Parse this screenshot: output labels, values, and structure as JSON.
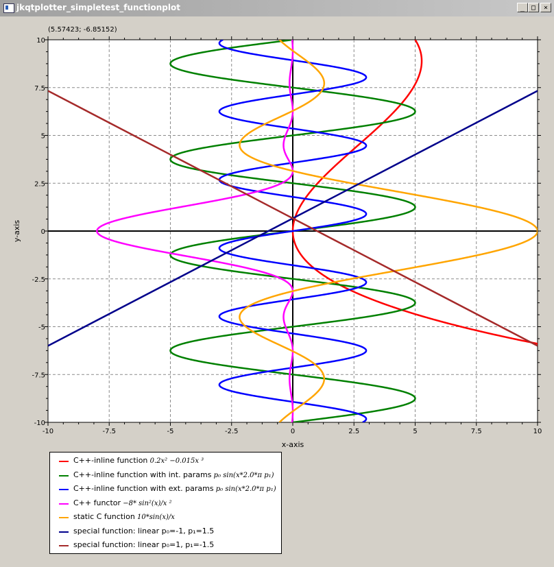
{
  "window": {
    "title": "jkqtplotter_simpletest_functionplot",
    "buttons": {
      "minimize": "_",
      "maximize": "□",
      "close": "×"
    }
  },
  "coords_readout": "(5.57423; -6.85152)",
  "colors": {
    "red": "#ff0000",
    "green": "#008000",
    "blue": "#0000ff",
    "magenta": "#ff00ff",
    "orange": "#ffa500",
    "navy": "#00008b",
    "brown": "#a52a2a"
  },
  "legend": [
    {
      "text": "C++-inline function",
      "math": "0.2x² −0.015x ³",
      "color": "#ff0000"
    },
    {
      "text": "C++-inline function with int. params",
      "math": "p₀ sin(x*2.0*π p₁)",
      "color": "#008000"
    },
    {
      "text": "C++-inline function with ext. params",
      "math": "p₀ sin(x*2.0*π p₁)",
      "color": "#0000ff"
    },
    {
      "text": "C++ functor",
      "math": "−8* sin²(x)/x ²",
      "color": "#ff00ff"
    },
    {
      "text": "static C function",
      "math": "10*sin(x)/x",
      "color": "#ffa500"
    },
    {
      "text": "special function: linear p₀=-1, p₁=1.5",
      "math": "",
      "color": "#00008b"
    },
    {
      "text": "special function: linear p₀=1, p₁=-1.5",
      "math": "",
      "color": "#a52a2a"
    }
  ],
  "chart_data": {
    "type": "line",
    "xlabel": "x-axis",
    "ylabel": "y-axis",
    "xlim": [
      -10,
      10
    ],
    "ylim": [
      -10,
      10
    ],
    "xticks": [
      "-10",
      "-7.5",
      "-5",
      "-2.5",
      "0",
      "2.5",
      "5",
      "7.5",
      "10"
    ],
    "yticks": [
      "-10",
      "-7.5",
      "-5",
      "-2.5",
      "0",
      "2.5",
      "5",
      "7.5",
      "10"
    ],
    "grid": true,
    "legend_position": "bottom-left-outside",
    "series": [
      {
        "name": "C++-inline function 0.2x² −0.015x ³",
        "type": "function",
        "expr": "0.2*x^2 - 0.015*x^3",
        "plotted_as": "x(y)",
        "color": "#ff0000"
      },
      {
        "name": "C++-inline function with int. params p₀ sin(x*2.0*π p₁)",
        "type": "function",
        "expr": "p0*sin(y*2*pi*p1)",
        "params": {
          "p0": 5,
          "p1": 0.2
        },
        "plotted_as": "x(y)",
        "color": "#008000"
      },
      {
        "name": "C++-inline function with ext. params p₀ sin(x*2.0*π p₁)",
        "type": "function",
        "expr": "p0*sin(y*2*pi*p1)",
        "params": {
          "p0": 3,
          "p1": 0.28
        },
        "plotted_as": "x(y)",
        "color": "#0000ff"
      },
      {
        "name": "C++ functor −8* sin²(x)/x ²",
        "type": "function",
        "expr": "-8*sin(y)^2/y^2",
        "plotted_as": "x(y)",
        "color": "#ff00ff"
      },
      {
        "name": "static C function 10*sin(x)/x",
        "type": "function",
        "expr": "10*sin(y)/y",
        "plotted_as": "x(y)",
        "color": "#ffa500"
      },
      {
        "name": "special function: linear p₀=-1, p₁=1.5",
        "type": "linear",
        "x": [
          -10,
          10
        ],
        "y": [
          -6,
          7.33
        ],
        "color": "#00008b"
      },
      {
        "name": "special function: linear p₀=1, p₁=-1.5",
        "type": "linear",
        "x": [
          -10,
          10
        ],
        "y": [
          7.33,
          -6
        ],
        "color": "#a52a2a"
      }
    ]
  }
}
